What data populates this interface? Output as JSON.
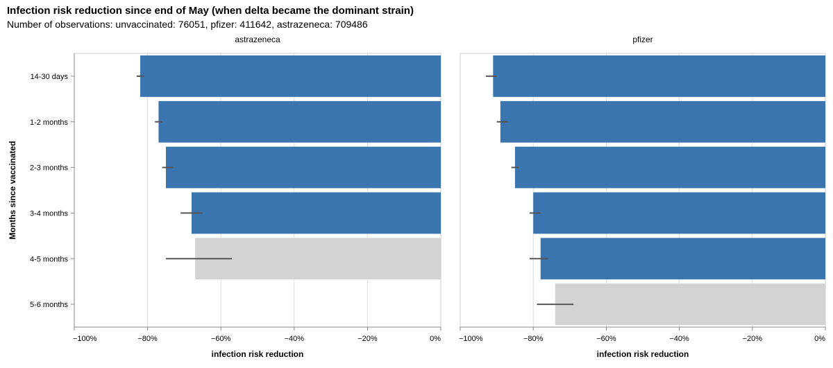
{
  "chart_data": {
    "type": "bar",
    "title": "Infection risk reduction since end of May (when delta became the dominant strain)",
    "subtitle": "Number of observations: unvaccinated: 76051, pfizer: 411642, astrazeneca: 709486",
    "xlabel": "infection risk reduction",
    "ylabel": "Months since vaccinated",
    "xlim": [
      -100,
      0
    ],
    "x_ticks": [
      -100,
      -80,
      -60,
      -40,
      -20,
      0
    ],
    "x_tick_labels": [
      "−100%",
      "−80%",
      "−60%",
      "−40%",
      "−20%",
      "0%"
    ],
    "categories": [
      "14-30 days",
      "1-2 months",
      "2-3 months",
      "3-4 months",
      "4-5 months",
      "5-6 months"
    ],
    "colors": {
      "significant": "#3b75af",
      "insignificant": "#d3d3d3",
      "error": "#555555",
      "grid": "#dddddd"
    },
    "panels": [
      {
        "name": "astrazeneca",
        "values": [
          -82,
          -77,
          -75,
          -68,
          -67,
          null
        ],
        "ci": [
          [
            -83,
            -81
          ],
          [
            -78,
            -76
          ],
          [
            -76,
            -73
          ],
          [
            -71,
            -65
          ],
          [
            -75,
            -57
          ],
          null
        ],
        "significant": [
          true,
          true,
          true,
          true,
          false,
          null
        ]
      },
      {
        "name": "pfizer",
        "values": [
          -91,
          -89,
          -85,
          -80,
          -78,
          -74
        ],
        "ci": [
          [
            -93,
            -90
          ],
          [
            -90,
            -87
          ],
          [
            -86,
            -84
          ],
          [
            -81,
            -78
          ],
          [
            -81,
            -76
          ],
          [
            -79,
            -69
          ]
        ],
        "significant": [
          true,
          true,
          true,
          true,
          true,
          false
        ]
      }
    ]
  }
}
